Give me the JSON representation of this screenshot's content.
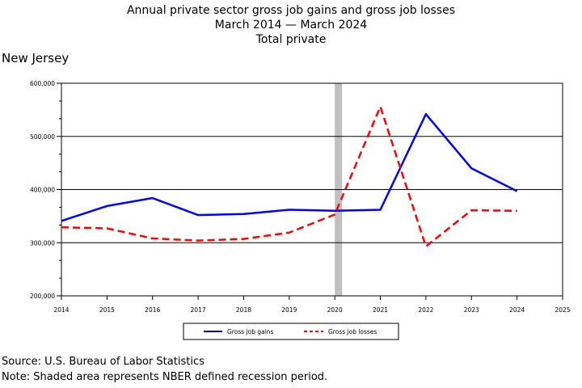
{
  "title_lines": [
    "Annual private sector gross job gains and gross job losses",
    "March 2014 — March 2024",
    "Total private"
  ],
  "region": "New Jersey",
  "source": "Source: U.S. Bureau of Labor Statistics",
  "note": "Note: Shaded area represents NBER defined recession period.",
  "colors": {
    "gains": "#0000ff",
    "losses": "#ff0000",
    "recession": "#c0c0c0"
  },
  "chart_data": {
    "type": "line",
    "x": [
      2014,
      2015,
      2016,
      2017,
      2018,
      2019,
      2020,
      2021,
      2022,
      2023,
      2024
    ],
    "xticks": [
      2014,
      2015,
      2016,
      2017,
      2018,
      2019,
      2020,
      2021,
      2022,
      2023,
      2024,
      2025
    ],
    "xlim": [
      2014,
      2025
    ],
    "ylim": [
      200000,
      600000
    ],
    "yticks": [
      200000,
      300000,
      400000,
      500000,
      600000
    ],
    "ytick_labels": [
      "200,000",
      "300,000",
      "400,000",
      "500,000",
      "600,000"
    ],
    "grid": "horizontal",
    "recession": [
      2020,
      2020.16
    ],
    "legend_position": "bottom",
    "series": [
      {
        "name": "Gross job gains",
        "style": "solid",
        "color": "#0000ff",
        "values": [
          341000,
          369000,
          384000,
          352000,
          354000,
          362000,
          360000,
          362000,
          542000,
          440000,
          397000
        ]
      },
      {
        "name": "Gross job losses",
        "style": "dashed",
        "color": "#ff0000",
        "values": [
          329000,
          327000,
          308000,
          304000,
          307000,
          319000,
          353000,
          556000,
          293000,
          361000,
          360000
        ]
      }
    ]
  }
}
